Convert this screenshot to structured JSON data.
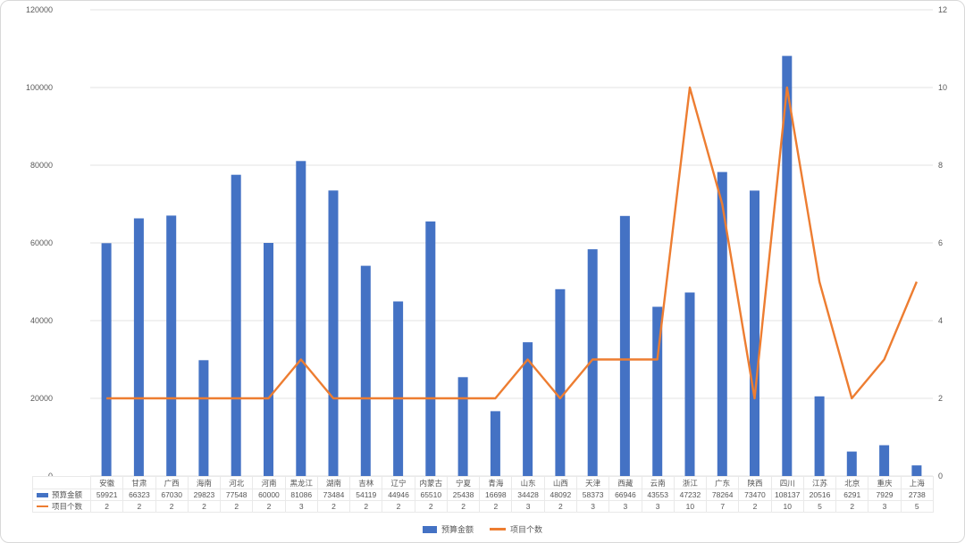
{
  "chart_data": {
    "type": "combo",
    "title": "",
    "categories": [
      "安徽",
      "甘肃",
      "广西",
      "海南",
      "河北",
      "河南",
      "黑龙江",
      "湖南",
      "吉林",
      "辽宁",
      "内蒙古",
      "宁夏",
      "青海",
      "山东",
      "山西",
      "天津",
      "西藏",
      "云南",
      "浙江",
      "广东",
      "陕西",
      "四川",
      "江苏",
      "北京",
      "重庆",
      "上海"
    ],
    "series": [
      {
        "name": "预算金额",
        "type": "bar",
        "axis": "left",
        "color": "#4472C4",
        "values": [
          59921,
          66323,
          67030,
          29823,
          77548,
          60000,
          81086,
          73484,
          54119,
          44946,
          65510,
          25438,
          16698,
          34428,
          48092,
          58373,
          66946,
          43553,
          47232,
          78264,
          73470,
          108137,
          20516,
          6291,
          7929,
          2738
        ]
      },
      {
        "name": "项目个数",
        "type": "line",
        "axis": "right",
        "color": "#ED7D31",
        "values": [
          2,
          2,
          2,
          2,
          2,
          2,
          3,
          2,
          2,
          2,
          2,
          2,
          2,
          3,
          2,
          3,
          3,
          3,
          10,
          7,
          2,
          10,
          5,
          2,
          3,
          5
        ]
      }
    ],
    "left_axis": {
      "min": 0,
      "max": 120000,
      "step": 20000,
      "ticks": [
        "0",
        "20000",
        "40000",
        "60000",
        "80000",
        "100000",
        "120000"
      ]
    },
    "right_axis": {
      "min": 0,
      "max": 12,
      "step": 2,
      "ticks": [
        "0",
        "2",
        "4",
        "6",
        "8",
        "10",
        "12"
      ]
    },
    "grid": true,
    "legend_position": "bottom",
    "legend": [
      "预算金额",
      "项目个数"
    ],
    "data_table_shown": true,
    "gridline_color": "#e3e3e3",
    "text_color": "#595959"
  }
}
